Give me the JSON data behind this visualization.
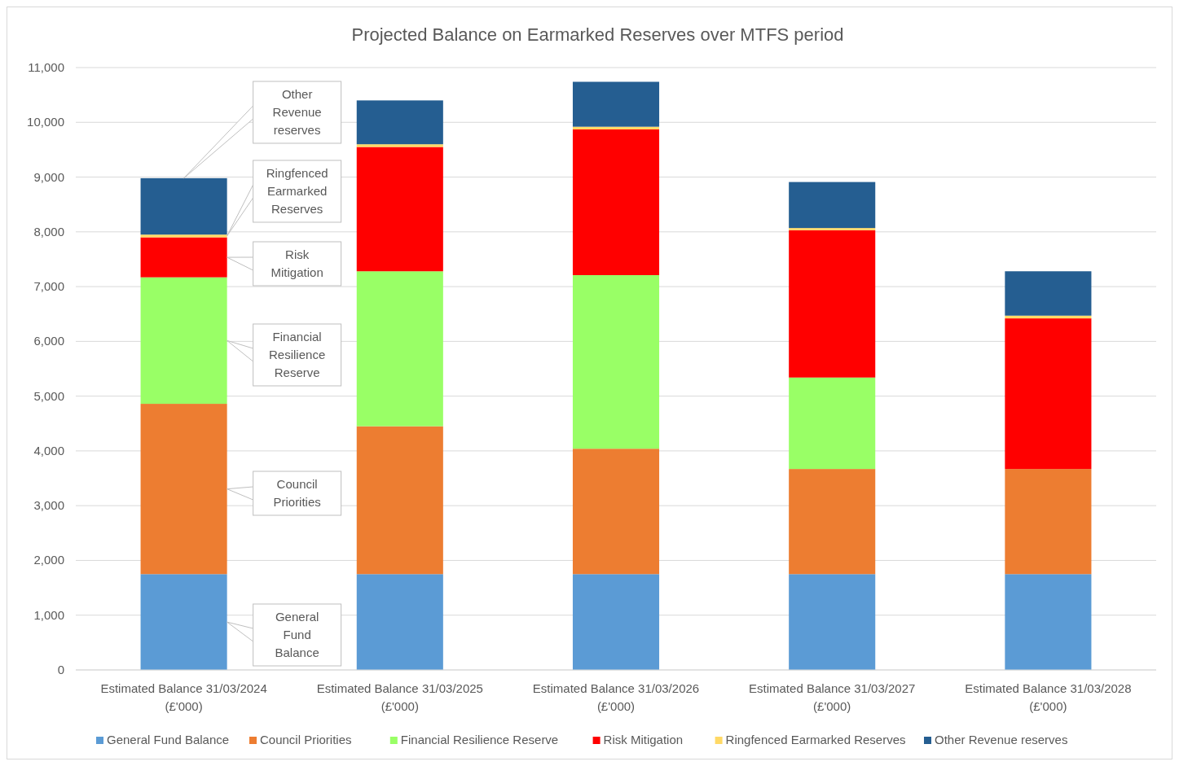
{
  "chart_data": {
    "type": "bar",
    "stacked": true,
    "title": "Projected Balance on Earmarked Reserves over MTFS period",
    "categories": [
      "Estimated Balance 31/03/2024 (£'000)",
      "Estimated Balance 31/03/2025 (£'000)",
      "Estimated Balance 31/03/2026 (£'000)",
      "Estimated Balance 31/03/2027 (£'000)",
      "Estimated Balance 31/03/2028 (£'000)"
    ],
    "series": [
      {
        "name": "General Fund Balance",
        "color": "#5b9bd5",
        "values": [
          1750,
          1750,
          1750,
          1750,
          1750
        ]
      },
      {
        "name": "Council Priorities",
        "color": "#ed7d31",
        "values": [
          3110,
          2700,
          2290,
          1920,
          1920
        ]
      },
      {
        "name": "Financial Resilience Reserve",
        "color": "#99ff66",
        "values": [
          2310,
          2830,
          3170,
          1670,
          0
        ]
      },
      {
        "name": "Risk Mitigation",
        "color": "#ff0000",
        "values": [
          730,
          2270,
          2660,
          2690,
          2750
        ]
      },
      {
        "name": "Ringfenced Earmarked Reserves",
        "color": "#ffd966",
        "values": [
          50,
          50,
          50,
          40,
          50
        ]
      },
      {
        "name": "Other Revenue reserves",
        "color": "#255e91",
        "values": [
          1030,
          800,
          820,
          840,
          810
        ]
      }
    ],
    "ylim": [
      0,
      11000
    ],
    "yticks": [
      {
        "value": 0,
        "label": "0"
      },
      {
        "value": 1000,
        "label": "1,000"
      },
      {
        "value": 2000,
        "label": "2,000"
      },
      {
        "value": 3000,
        "label": "3,000"
      },
      {
        "value": 4000,
        "label": "4,000"
      },
      {
        "value": 5000,
        "label": "5,000"
      },
      {
        "value": 6000,
        "label": "6,000"
      },
      {
        "value": 7000,
        "label": "7,000"
      },
      {
        "value": 8000,
        "label": "8,000"
      },
      {
        "value": 9000,
        "label": "9,000"
      },
      {
        "value": 10000,
        "label": "10,000"
      },
      {
        "value": 11000,
        "label": "11,000"
      }
    ],
    "grid": "y",
    "legend": "bottom",
    "annotations": [
      "Other Revenue reserves",
      "Ringfenced Earmarked Reserves",
      "Risk Mitigation",
      "Financial Resilience Reserve",
      "Council Priorities",
      "General Fund Balance"
    ]
  }
}
